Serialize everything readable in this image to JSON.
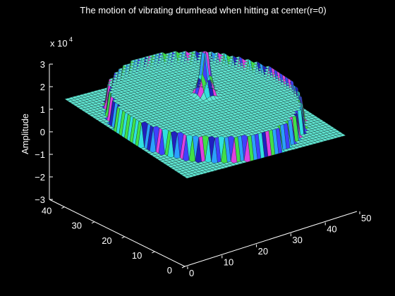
{
  "chart_data": {
    "type": "surface",
    "title": "The motion of vibrating drumhead when hitting at center(r=0)",
    "zlabel": "Amplitude",
    "z_exponent_base": "x 10",
    "z_exponent_power": "4",
    "x_ticks": [
      "0",
      "10",
      "20",
      "30",
      "40",
      "50"
    ],
    "y_ticks": [
      "0",
      "10",
      "20",
      "30",
      "40"
    ],
    "z_ticks": [
      "−3",
      "−2",
      "−1",
      "0",
      "1",
      "2",
      "3"
    ],
    "xlim": [
      0,
      50
    ],
    "ylim": [
      0,
      45
    ],
    "zlim": [
      -3,
      3
    ],
    "grid_size": 46,
    "drum_radius": 22,
    "drum_center": [
      22.5,
      22.5
    ],
    "plateau_level": 0,
    "outside_level": -1,
    "peak_value": 2.3,
    "colors": {
      "background": "#000000",
      "mesh": "#5fe6d2",
      "mesh_edge": "#1a2a28",
      "rim_colors": [
        "#40e048",
        "#2aa0ff",
        "#4040ff",
        "#30e0e0",
        "#2020c0",
        "#e040e0"
      ]
    }
  }
}
